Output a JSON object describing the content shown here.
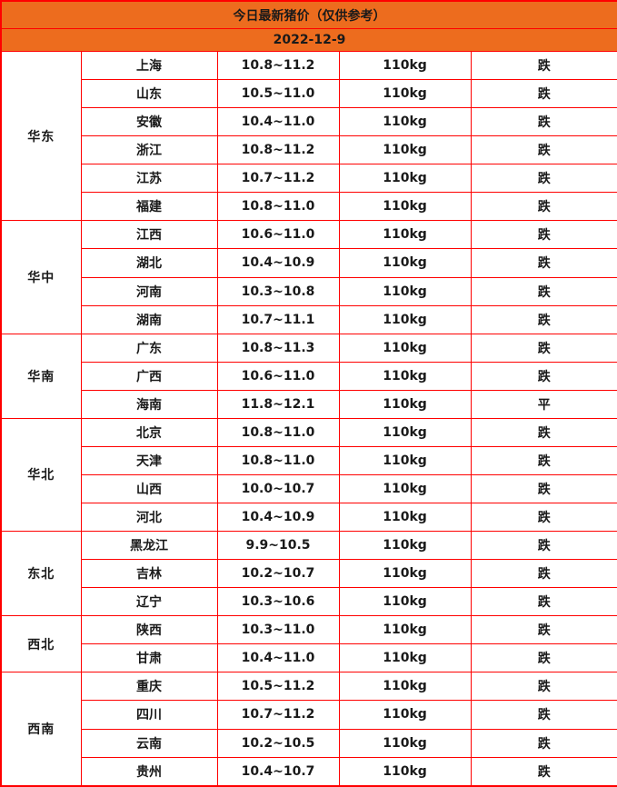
{
  "header": {
    "title": "今日最新猪价（仅供参考）",
    "date": "2022-12-9"
  },
  "colors": {
    "header_bg": "#ED6C1E",
    "border": "#FF0000",
    "trend_fall": "#00CC00",
    "trend_flat": "#000000"
  },
  "chart_data": {
    "type": "table",
    "title": "今日最新猪价（仅供参考）",
    "date": "2022-12-9",
    "groups": [
      {
        "region": "华东",
        "rows": [
          {
            "province": "上海",
            "price": "10.8~11.2",
            "weight": "110kg",
            "trend": "跌"
          },
          {
            "province": "山东",
            "price": "10.5~11.0",
            "weight": "110kg",
            "trend": "跌"
          },
          {
            "province": "安徽",
            "price": "10.4~11.0",
            "weight": "110kg",
            "trend": "跌"
          },
          {
            "province": "浙江",
            "price": "10.8~11.2",
            "weight": "110kg",
            "trend": "跌"
          },
          {
            "province": "江苏",
            "price": "10.7~11.2",
            "weight": "110kg",
            "trend": "跌"
          },
          {
            "province": "福建",
            "price": "10.8~11.0",
            "weight": "110kg",
            "trend": "跌"
          }
        ]
      },
      {
        "region": "华中",
        "rows": [
          {
            "province": "江西",
            "price": "10.6~11.0",
            "weight": "110kg",
            "trend": "跌"
          },
          {
            "province": "湖北",
            "price": "10.4~10.9",
            "weight": "110kg",
            "trend": "跌"
          },
          {
            "province": "河南",
            "price": "10.3~10.8",
            "weight": "110kg",
            "trend": "跌"
          },
          {
            "province": "湖南",
            "price": "10.7~11.1",
            "weight": "110kg",
            "trend": "跌"
          }
        ]
      },
      {
        "region": "华南",
        "rows": [
          {
            "province": "广东",
            "price": "10.8~11.3",
            "weight": "110kg",
            "trend": "跌"
          },
          {
            "province": "广西",
            "price": "10.6~11.0",
            "weight": "110kg",
            "trend": "跌"
          },
          {
            "province": "海南",
            "price": "11.8~12.1",
            "weight": "110kg",
            "trend": "平"
          }
        ]
      },
      {
        "region": "华北",
        "rows": [
          {
            "province": "北京",
            "price": "10.8~11.0",
            "weight": "110kg",
            "trend": "跌"
          },
          {
            "province": "天津",
            "price": "10.8~11.0",
            "weight": "110kg",
            "trend": "跌"
          },
          {
            "province": "山西",
            "price": "10.0~10.7",
            "weight": "110kg",
            "trend": "跌"
          },
          {
            "province": "河北",
            "price": "10.4~10.9",
            "weight": "110kg",
            "trend": "跌"
          }
        ]
      },
      {
        "region": "东北",
        "rows": [
          {
            "province": "黑龙江",
            "price": "9.9~10.5",
            "weight": "110kg",
            "trend": "跌"
          },
          {
            "province": "吉林",
            "price": "10.2~10.7",
            "weight": "110kg",
            "trend": "跌"
          },
          {
            "province": "辽宁",
            "price": "10.3~10.6",
            "weight": "110kg",
            "trend": "跌"
          }
        ]
      },
      {
        "region": "西北",
        "rows": [
          {
            "province": "陕西",
            "price": "10.3~11.0",
            "weight": "110kg",
            "trend": "跌"
          },
          {
            "province": "甘肃",
            "price": "10.4~11.0",
            "weight": "110kg",
            "trend": "跌"
          }
        ]
      },
      {
        "region": "西南",
        "rows": [
          {
            "province": "重庆",
            "price": "10.5~11.2",
            "weight": "110kg",
            "trend": "跌"
          },
          {
            "province": "四川",
            "price": "10.7~11.2",
            "weight": "110kg",
            "trend": "跌"
          },
          {
            "province": "云南",
            "price": "10.2~10.5",
            "weight": "110kg",
            "trend": "跌"
          },
          {
            "province": "贵州",
            "price": "10.4~10.7",
            "weight": "110kg",
            "trend": "跌"
          }
        ]
      }
    ]
  }
}
